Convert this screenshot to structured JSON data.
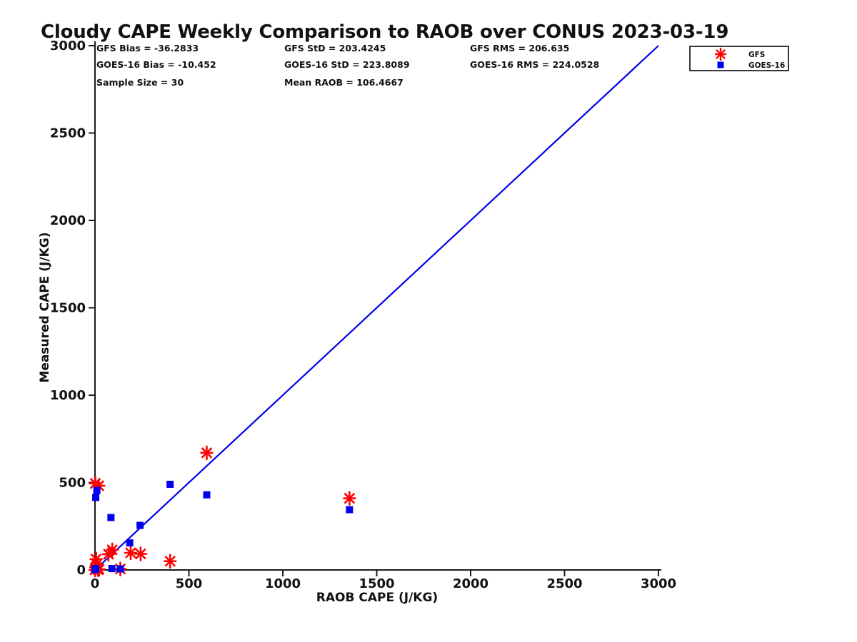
{
  "title": "Cloudy CAPE Weekly Comparison to RAOB over CONUS 2023-03-19",
  "stats": {
    "gfs_bias": "GFS Bias = -36.2833",
    "gfs_std": "GFS StD = 203.4245",
    "gfs_rms": "GFS RMS = 206.635",
    "goes_bias": "GOES-16 Bias = -10.452",
    "goes_std": "GOES-16 StD = 223.8089",
    "goes_rms": "GOES-16 RMS = 224.0528",
    "sample_size": "Sample Size = 30",
    "mean_raob": "Mean RAOB = 106.4667"
  },
  "chart_data": {
    "type": "scatter",
    "title": "Cloudy CAPE Weekly Comparison to RAOB over CONUS 2023-03-19",
    "xlabel": "RAOB CAPE (J/KG)",
    "ylabel": "Measured CAPE (J/KG)",
    "xlim": [
      0,
      3000
    ],
    "ylim": [
      0,
      3000
    ],
    "xticks": [
      0,
      500,
      1000,
      1500,
      2000,
      2500,
      3000
    ],
    "yticks": [
      0,
      500,
      1000,
      1500,
      2000,
      2500,
      3000
    ],
    "grid": false,
    "legend": {
      "position": "top-right",
      "entries": [
        "GFS",
        "GOES-16"
      ]
    },
    "reference_line": {
      "type": "identity",
      "from": [
        0,
        0
      ],
      "to": [
        3000,
        3000
      ],
      "color": "#0000EE",
      "width": 2.2
    },
    "series": [
      {
        "name": "GFS",
        "marker": "asterisk",
        "color": "#FF0000",
        "points": [
          [
            0,
            0
          ],
          [
            4,
            14
          ],
          [
            9,
            32
          ],
          [
            6,
            62
          ],
          [
            16,
            2
          ],
          [
            22,
            4
          ],
          [
            2,
            495
          ],
          [
            20,
            482
          ],
          [
            72,
            90
          ],
          [
            92,
            115
          ],
          [
            135,
            6
          ],
          [
            190,
            98
          ],
          [
            243,
            92
          ],
          [
            400,
            50
          ],
          [
            595,
            670
          ],
          [
            1355,
            410
          ]
        ]
      },
      {
        "name": "GOES-16",
        "marker": "square",
        "color": "#0000EE",
        "points": [
          [
            0,
            2
          ],
          [
            4,
            8
          ],
          [
            90,
            8
          ],
          [
            135,
            6
          ],
          [
            10,
            455
          ],
          [
            4,
            415
          ],
          [
            85,
            300
          ],
          [
            185,
            155
          ],
          [
            240,
            255
          ],
          [
            400,
            490
          ],
          [
            595,
            430
          ],
          [
            1355,
            345
          ]
        ]
      }
    ]
  }
}
